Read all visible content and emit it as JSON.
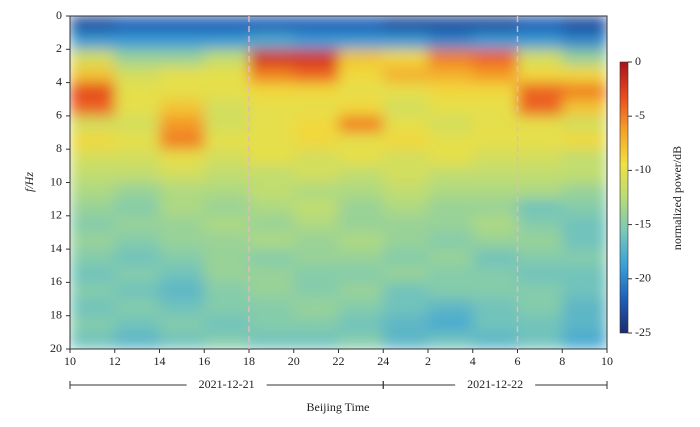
{
  "chart_data": {
    "type": "heatmap",
    "ylabel": "f/Hz",
    "xlabel": "Beijing Time",
    "colorbar_label": "normalized power/dB",
    "xlim": [
      10,
      34
    ],
    "xticks": [
      10,
      12,
      14,
      16,
      18,
      20,
      22,
      24,
      {
        "value": 26,
        "label": "2"
      },
      {
        "value": 28,
        "label": "4"
      },
      {
        "value": 30,
        "label": "6"
      },
      {
        "value": 32,
        "label": "8"
      },
      {
        "value": 34,
        "label": "10"
      }
    ],
    "ylim": [
      0,
      20
    ],
    "y_inverted": true,
    "yticks": [
      0,
      2,
      4,
      6,
      8,
      10,
      12,
      14,
      16,
      18,
      20
    ],
    "clim": [
      -25,
      0
    ],
    "cticks": [
      0,
      -5,
      -10,
      -15,
      -20,
      -25
    ],
    "colormap": [
      "#1c2a6e",
      "#1f5fb8",
      "#3aa0d8",
      "#78c8b8",
      "#b8dc78",
      "#f0e040",
      "#f5a028",
      "#e84a1e",
      "#a8121a"
    ],
    "vlines": [
      18,
      30
    ],
    "vline_color": "#e8b4c8",
    "periods": [
      {
        "label": "2021-12-21",
        "start": 10,
        "end": 24
      },
      {
        "label": "2021-12-22",
        "start": 24,
        "end": 34
      }
    ],
    "xbins": [
      10,
      12,
      14,
      16,
      18,
      20,
      22,
      24,
      26,
      28,
      30,
      32,
      34
    ],
    "ybins": [
      0,
      1,
      2,
      3,
      4,
      5,
      6,
      7,
      8,
      9,
      10,
      11,
      12,
      13,
      14,
      15,
      16,
      17,
      18,
      19,
      20
    ],
    "z": [
      [
        -23,
        -22,
        -22,
        -22,
        -22,
        -22,
        -22,
        -23,
        -23,
        -23,
        -22,
        -23
      ],
      [
        -19,
        -19,
        -19,
        -19,
        -18,
        -19,
        -19,
        -19,
        -20,
        -19,
        -19,
        -20
      ],
      [
        -11,
        -14,
        -14,
        -12,
        -2,
        -2,
        -8,
        -9,
        -5,
        -4,
        -11,
        -14
      ],
      [
        -8,
        -11,
        -10,
        -10,
        -5,
        -4,
        -9,
        -7,
        -7,
        -6,
        -9,
        -9
      ],
      [
        -3,
        -10,
        -10,
        -10,
        -9,
        -9,
        -10,
        -10,
        -9,
        -9,
        -4,
        -5
      ],
      [
        -4,
        -10,
        -8,
        -11,
        -10,
        -10,
        -9,
        -11,
        -10,
        -10,
        -4,
        -8
      ],
      [
        -11,
        -11,
        -6,
        -11,
        -10,
        -9,
        -5,
        -10,
        -11,
        -10,
        -10,
        -11
      ],
      [
        -9,
        -10,
        -5,
        -10,
        -10,
        -9,
        -10,
        -9,
        -10,
        -10,
        -10,
        -9
      ],
      [
        -11,
        -11,
        -10,
        -11,
        -10,
        -11,
        -10,
        -11,
        -10,
        -11,
        -11,
        -12
      ],
      [
        -12,
        -12,
        -11,
        -12,
        -12,
        -11,
        -12,
        -11,
        -12,
        -12,
        -12,
        -12
      ],
      [
        -13,
        -14,
        -13,
        -13,
        -12,
        -13,
        -13,
        -12,
        -13,
        -13,
        -13,
        -14
      ],
      [
        -14,
        -15,
        -13,
        -14,
        -13,
        -12,
        -14,
        -13,
        -14,
        -14,
        -16,
        -15
      ],
      [
        -15,
        -14,
        -14,
        -13,
        -14,
        -13,
        -14,
        -14,
        -14,
        -13,
        -15,
        -16
      ],
      [
        -14,
        -15,
        -14,
        -14,
        -13,
        -14,
        -13,
        -14,
        -15,
        -14,
        -14,
        -16
      ],
      [
        -15,
        -16,
        -15,
        -14,
        -15,
        -14,
        -14,
        -15,
        -14,
        -16,
        -15,
        -15
      ],
      [
        -16,
        -15,
        -16,
        -14,
        -14,
        -15,
        -15,
        -14,
        -15,
        -15,
        -16,
        -16
      ],
      [
        -15,
        -16,
        -17,
        -15,
        -14,
        -15,
        -14,
        -16,
        -15,
        -15,
        -15,
        -16
      ],
      [
        -16,
        -15,
        -16,
        -15,
        -15,
        -14,
        -15,
        -16,
        -17,
        -16,
        -15,
        -17
      ],
      [
        -15,
        -16,
        -15,
        -16,
        -15,
        -15,
        -16,
        -17,
        -18,
        -16,
        -16,
        -17
      ],
      [
        -16,
        -17,
        -16,
        -15,
        -16,
        -16,
        -15,
        -17,
        -16,
        -17,
        -16,
        -18
      ]
    ]
  }
}
